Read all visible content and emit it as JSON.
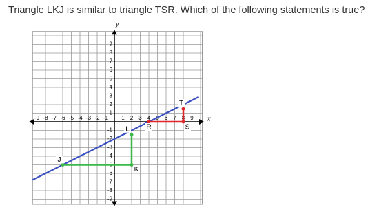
{
  "question": "Triangle LKJ is similar to triangle TSR. Which of the following statements is true?",
  "graph": {
    "x_label": "x",
    "y_label": "y",
    "x_ticks": [
      -9,
      -8,
      -7,
      -6,
      -5,
      -4,
      -3,
      -2,
      -1,
      1,
      2,
      3,
      4,
      5,
      6,
      7,
      8,
      9
    ],
    "y_ticks": [
      9,
      8,
      7,
      6,
      5,
      4,
      3,
      2,
      1,
      -1,
      -2,
      -3,
      -4,
      -5,
      -6,
      -7,
      -8,
      -9
    ],
    "points": [
      {
        "label": "J"
      },
      {
        "label": "K"
      },
      {
        "label": "L"
      },
      {
        "label": "T"
      },
      {
        "label": "S"
      },
      {
        "label": "R"
      }
    ]
  }
}
